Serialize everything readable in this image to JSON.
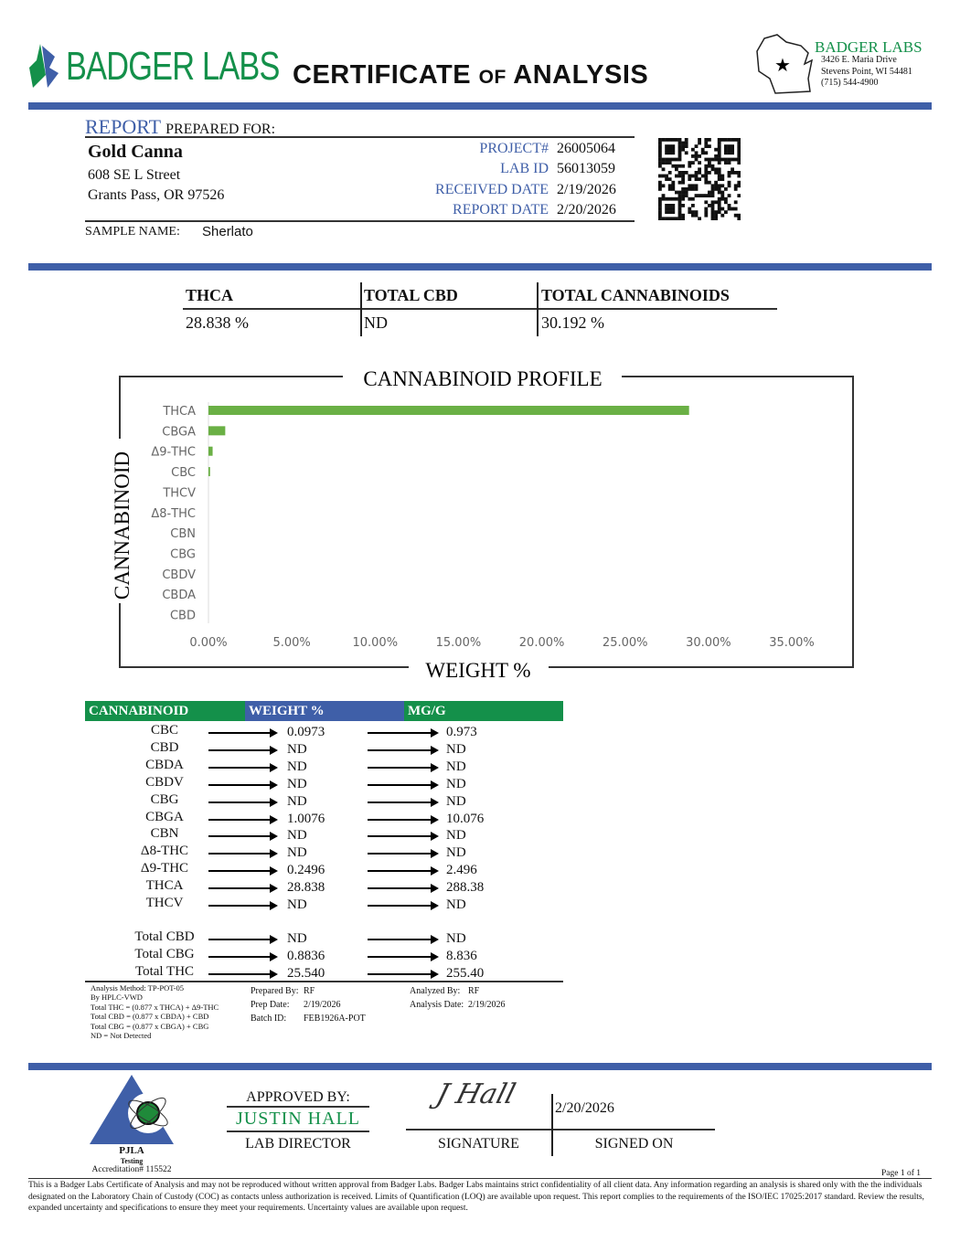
{
  "header": {
    "logo_text": "BADGER LABS",
    "title_a": "CERTIFICATE",
    "title_of": "OF",
    "title_b": "ANALYSIS",
    "lab_name": "BADGER LABS",
    "lab_address1": "3426 E. Maria Drive",
    "lab_address2": "Stevens Point, WI 54481",
    "lab_phone": "(715) 544-4900"
  },
  "client": {
    "report_word": "REPORT",
    "prepared_for": "PREPARED FOR:",
    "name": "Gold Canna",
    "address1": "608 SE L Street",
    "address2": "Grants Pass, OR 97526",
    "sample_name_label": "SAMPLE NAME:",
    "sample_name": "Sherlato"
  },
  "ids": [
    {
      "label": "PROJECT#",
      "value": "26005064"
    },
    {
      "label": "LAB ID",
      "value": "56013059"
    },
    {
      "label": "RECEIVED DATE",
      "value": "2/19/2026"
    },
    {
      "label": "REPORT DATE",
      "value": "2/20/2026"
    }
  ],
  "summary": [
    {
      "label": "THCA",
      "value": "28.838 %"
    },
    {
      "label": "TOTAL CBD",
      "value": "ND"
    },
    {
      "label": "TOTAL CANNABINOIDS",
      "value": "30.192 %"
    }
  ],
  "chart_data": {
    "type": "bar",
    "orientation": "horizontal",
    "title": "CANNABINOID PROFILE",
    "xlabel": "WEIGHT %",
    "ylabel": "CANNABINOID",
    "categories": [
      "THCA",
      "CBGA",
      "Δ9-THC",
      "CBC",
      "THCV",
      "Δ8-THC",
      "CBN",
      "CBG",
      "CBDV",
      "CBDA",
      "CBD"
    ],
    "values": [
      28.838,
      1.0076,
      0.2496,
      0.0973,
      0,
      0,
      0,
      0,
      0,
      0,
      0
    ],
    "xlim": [
      0,
      35
    ],
    "xticks": [
      "0.00%",
      "5.00%",
      "10.00%",
      "15.00%",
      "20.00%",
      "25.00%",
      "30.00%",
      "35.00%"
    ],
    "grid": false,
    "bar_color": "#6ab045"
  },
  "results": {
    "headers": [
      "CANNABINOID",
      "WEIGHT %",
      "MG/G"
    ],
    "rows": [
      [
        "CBC",
        "0.0973",
        "0.973"
      ],
      [
        "CBD",
        "ND",
        "ND"
      ],
      [
        "CBDA",
        "ND",
        "ND"
      ],
      [
        "CBDV",
        "ND",
        "ND"
      ],
      [
        "CBG",
        "ND",
        "ND"
      ],
      [
        "CBGA",
        "1.0076",
        "10.076"
      ],
      [
        "CBN",
        "ND",
        "ND"
      ],
      [
        "Δ8-THC",
        "ND",
        "ND"
      ],
      [
        "Δ9-THC",
        "0.2496",
        "2.496"
      ],
      [
        "THCA",
        "28.838",
        "288.38"
      ],
      [
        "THCV",
        "ND",
        "ND"
      ]
    ],
    "totals": [
      [
        "Total CBD",
        "ND",
        "ND"
      ],
      [
        "Total CBG",
        "0.8836",
        "8.836"
      ],
      [
        "Total THC",
        "25.540",
        "255.40"
      ]
    ]
  },
  "notes": {
    "method": [
      "Analysis Method: TP-POT-05",
      "By HPLC-VWD",
      "Total THC = (0.877 x  THCA) + Δ9-THC",
      "Total CBD = (0.877 x  CBDA) + CBD",
      "Total CBG = (0.877 x  CBGA) + CBG",
      "ND = Not Detected"
    ],
    "prepared_by_label": "Prepared By:",
    "prepared_by": "RF",
    "prep_date_label": "Prep Date:",
    "prep_date": "2/19/2026",
    "batch_label": "Batch ID:",
    "batch": "FEB1926A-POT",
    "analyzed_by_label": "Analyzed By:",
    "analyzed_by": "RF",
    "analysis_date_label": "Analysis Date:",
    "analysis_date": "2/19/2026"
  },
  "footer": {
    "pjla": "PJLA",
    "testing": "Testing",
    "accreditation": "Accreditation# 115522",
    "approved_by": "APPROVED BY:",
    "approver": "JUSTIN HALL",
    "approver_title": "LAB DIRECTOR",
    "signature_text": "J Hall",
    "signature_label": "SIGNATURE",
    "signed_date": "2/20/2026",
    "signed_on": "SIGNED ON",
    "page": "Page 1 of 1",
    "disclaimer": "This is a Badger Labs Certificate of Analysis and may not be reproduced without written approval from Badger Labs. Badger Labs maintains strict confidentiality of all client data. Any information regarding an analysis is shared only with the the individuals designated on the Laboratory Chain of Custody (COC) as contacts unless authorization is received. Limits of Quantification (LOQ) are available upon request. This report complies to the requirements of the ISO/IEC 17025:2017 standard. Review the results, expanded uncertainty and specifications to ensure they meet your requirements. Uncertainty values are available upon request."
  },
  "colors": {
    "blue": "#3f5fa8",
    "green": "#14904a",
    "bar": "#6ab045"
  }
}
